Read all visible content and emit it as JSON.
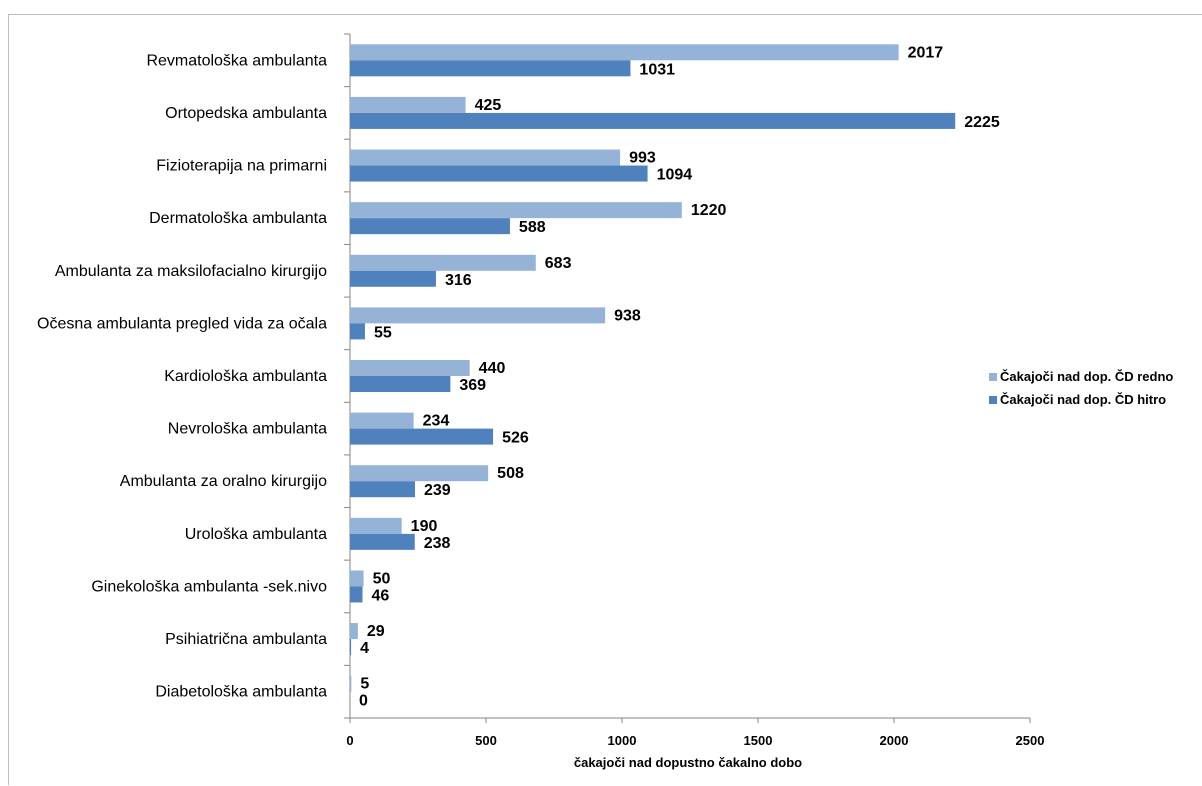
{
  "chart_data": {
    "type": "bar",
    "orientation": "horizontal",
    "title": "",
    "xlabel": "čakajoči nad dopustno čakalno dobo",
    "ylabel": "",
    "xlim": [
      0,
      2500
    ],
    "xticks": [
      0,
      500,
      1000,
      1500,
      2000,
      2500
    ],
    "grid": false,
    "legend_position": "right",
    "categories": [
      "Revmatološka ambulanta",
      "Ortopedska ambulanta",
      "Fizioterapija na primarni",
      "Dermatološka ambulanta",
      "Ambulanta za maksilofacialno kirurgijo",
      "Očesna ambulanta  pregled vida za očala",
      "Kardiološka ambulanta",
      "Nevrološka ambulanta",
      "Ambulanta za oralno kirurgijo",
      "Urološka ambulanta",
      "Ginekološka ambulanta -sek.nivo",
      "Psihiatrična ambulanta",
      "Diabetološka ambulanta"
    ],
    "series": [
      {
        "name": "Čakajoči nad dop. ČD redno",
        "color": "#95b3d7",
        "values": [
          2017,
          425,
          993,
          1220,
          683,
          938,
          440,
          234,
          508,
          190,
          50,
          29,
          5
        ]
      },
      {
        "name": "Čakajoči nad dop. ČD hitro",
        "color": "#4f81bd",
        "values": [
          1031,
          2225,
          1094,
          588,
          316,
          55,
          369,
          526,
          239,
          238,
          46,
          4,
          0
        ]
      }
    ]
  }
}
